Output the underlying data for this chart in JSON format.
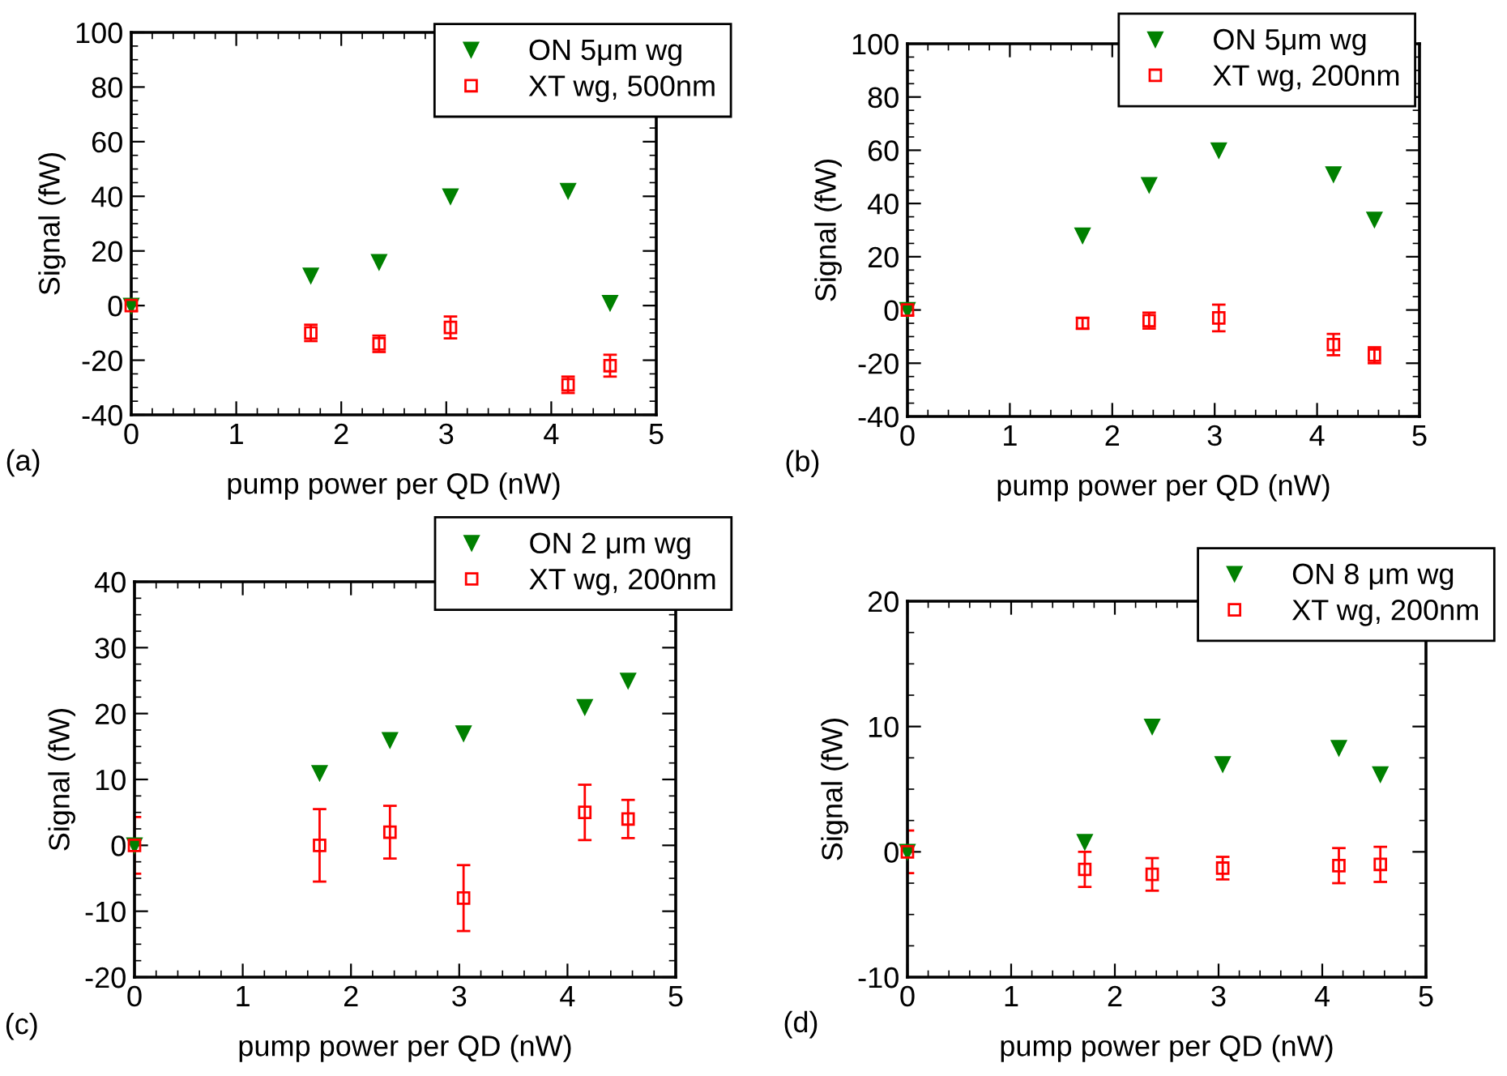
{
  "chart_data": [
    {
      "type": "scatter",
      "xlabel": "pump power per QD (nW)",
      "ylabel": "Signal (fW)",
      "annotations": [
        "(a)"
      ],
      "xlim": [
        0,
        5
      ],
      "xticks": [
        0,
        1,
        2,
        3,
        4,
        5
      ],
      "ylim": [
        -40,
        100
      ],
      "yticks": [
        -40,
        -20,
        0,
        20,
        40,
        60,
        80,
        100
      ],
      "legend": "top right",
      "grid": false,
      "x": [
        0,
        1.71,
        2.36,
        3.04,
        4.16,
        4.56
      ],
      "series": [
        {
          "name": "ON 5μm wg",
          "color": "#008000",
          "marker": "triangle",
          "values": [
            0,
            11,
            16,
            40,
            42,
            1
          ]
        },
        {
          "name": "XT wg, 500nm",
          "color": "#ff0000",
          "marker": "square",
          "values": [
            0,
            -10,
            -14,
            -8,
            -29,
            -22
          ],
          "errors": [
            2,
            3,
            3,
            4,
            3,
            4
          ]
        }
      ]
    },
    {
      "type": "scatter",
      "xlabel": "pump power per QD (nW)",
      "ylabel": "Signal (fW)",
      "annotations": [
        "(b)"
      ],
      "xlim": [
        0,
        5
      ],
      "xticks": [
        0,
        1,
        2,
        3,
        4,
        5
      ],
      "ylim": [
        -40,
        100
      ],
      "yticks": [
        -40,
        -20,
        0,
        20,
        40,
        60,
        80,
        100
      ],
      "legend": "top right",
      "grid": false,
      "x": [
        0,
        1.71,
        2.36,
        3.04,
        4.16,
        4.56
      ],
      "series": [
        {
          "name": "ON 5μm wg",
          "color": "#008000",
          "marker": "triangle",
          "values": [
            0,
            28,
            47,
            60,
            51,
            34
          ]
        },
        {
          "name": "XT wg, 200nm",
          "color": "#ff0000",
          "marker": "square",
          "values": [
            0,
            -5,
            -4,
            -3,
            -13,
            -17
          ],
          "errors": [
            2,
            2,
            3,
            5,
            4,
            3
          ]
        }
      ]
    },
    {
      "type": "scatter",
      "xlabel": "pump power per QD (nW)",
      "ylabel": "Signal (fW)",
      "annotations": [
        "(c)"
      ],
      "xlim": [
        0,
        5
      ],
      "xticks": [
        0,
        1,
        2,
        3,
        4,
        5
      ],
      "ylim": [
        -20,
        40
      ],
      "yticks": [
        -20,
        -10,
        0,
        10,
        20,
        30,
        40
      ],
      "legend": "top right",
      "grid": false,
      "x": [
        0,
        1.71,
        2.36,
        3.04,
        4.16,
        4.56
      ],
      "series": [
        {
          "name": "ON 2 μm wg",
          "color": "#008000",
          "marker": "triangle",
          "values": [
            0,
            11,
            16,
            17,
            21,
            25
          ]
        },
        {
          "name": "XT wg, 200nm",
          "color": "#ff0000",
          "marker": "square",
          "values": [
            0,
            0,
            2,
            -8,
            5,
            4
          ],
          "errors": [
            4.3,
            5.5,
            4,
            5,
            4.2,
            2.9
          ]
        }
      ]
    },
    {
      "type": "scatter",
      "xlabel": "pump power per QD (nW)",
      "ylabel": "Signal (fW)",
      "annotations": [
        "(d)"
      ],
      "xlim": [
        0,
        5
      ],
      "xticks": [
        0,
        1,
        2,
        3,
        4,
        5
      ],
      "ylim": [
        -10,
        20
      ],
      "yticks": [
        -10,
        0,
        10,
        20
      ],
      "legend": "top right",
      "grid": false,
      "x": [
        0,
        1.71,
        2.36,
        3.04,
        4.16,
        4.56
      ],
      "series": [
        {
          "name": "ON 8 μm wg",
          "color": "#008000",
          "marker": "triangle",
          "values": [
            0,
            0.8,
            10,
            7,
            8.3,
            6.2
          ]
        },
        {
          "name": "XT wg, 200nm",
          "color": "#ff0000",
          "marker": "square",
          "values": [
            0,
            -1.4,
            -1.8,
            -1.3,
            -1.1,
            -1
          ],
          "errors": [
            1.7,
            1.4,
            1.3,
            0.9,
            1.4,
            1.4
          ]
        }
      ]
    }
  ]
}
